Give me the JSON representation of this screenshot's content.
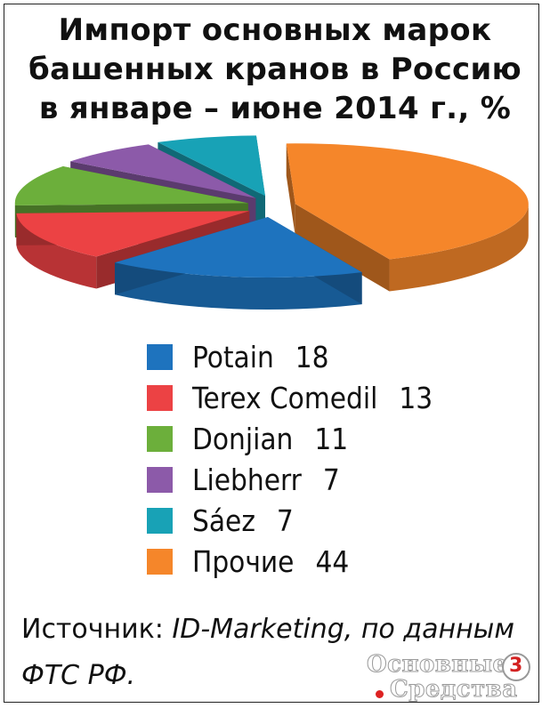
{
  "title_lines": [
    "Импорт основных марок",
    "башенных кранов в Россию",
    "в январе – июне 2014 г., %"
  ],
  "chart_data": {
    "type": "pie",
    "title": "Импорт основных марок башенных кранов в Россию в январе – июне 2014 г., %",
    "unit": "%",
    "legend_position": "below",
    "three_d": true,
    "exploded": true,
    "series": [
      {
        "name": "Potain",
        "value": 18,
        "color": "#1e73be"
      },
      {
        "name": "Terex Comedil",
        "value": 13,
        "color": "#ec4244"
      },
      {
        "name": "Donjian",
        "value": 11,
        "color": "#6caf3b"
      },
      {
        "name": "Liebherr",
        "value": 7,
        "color": "#8c5aa9"
      },
      {
        "name": "Sáez",
        "value": 7,
        "color": "#18a2b6"
      },
      {
        "name": "Прочие",
        "value": 44,
        "color": "#f5862a"
      }
    ]
  },
  "legend": [
    {
      "name": "Potain",
      "value": "18",
      "color": "#1e73be"
    },
    {
      "name": "Terex Comedil",
      "value": "13",
      "color": "#ec4244"
    },
    {
      "name": "Donjian",
      "value": "11",
      "color": "#6caf3b"
    },
    {
      "name": "Liebherr",
      "value": "7",
      "color": "#8c5aa9"
    },
    {
      "name": "Sáez",
      "value": "7",
      "color": "#18a2b6"
    },
    {
      "name": "Прочие",
      "value": "44",
      "color": "#f5862a"
    }
  ],
  "source": {
    "label": "Источник:",
    "text": "ID-Marketing, по данным ФТС РФ."
  },
  "logo": {
    "line1": "Основные",
    "line2": "Средства",
    "mark": "3"
  }
}
